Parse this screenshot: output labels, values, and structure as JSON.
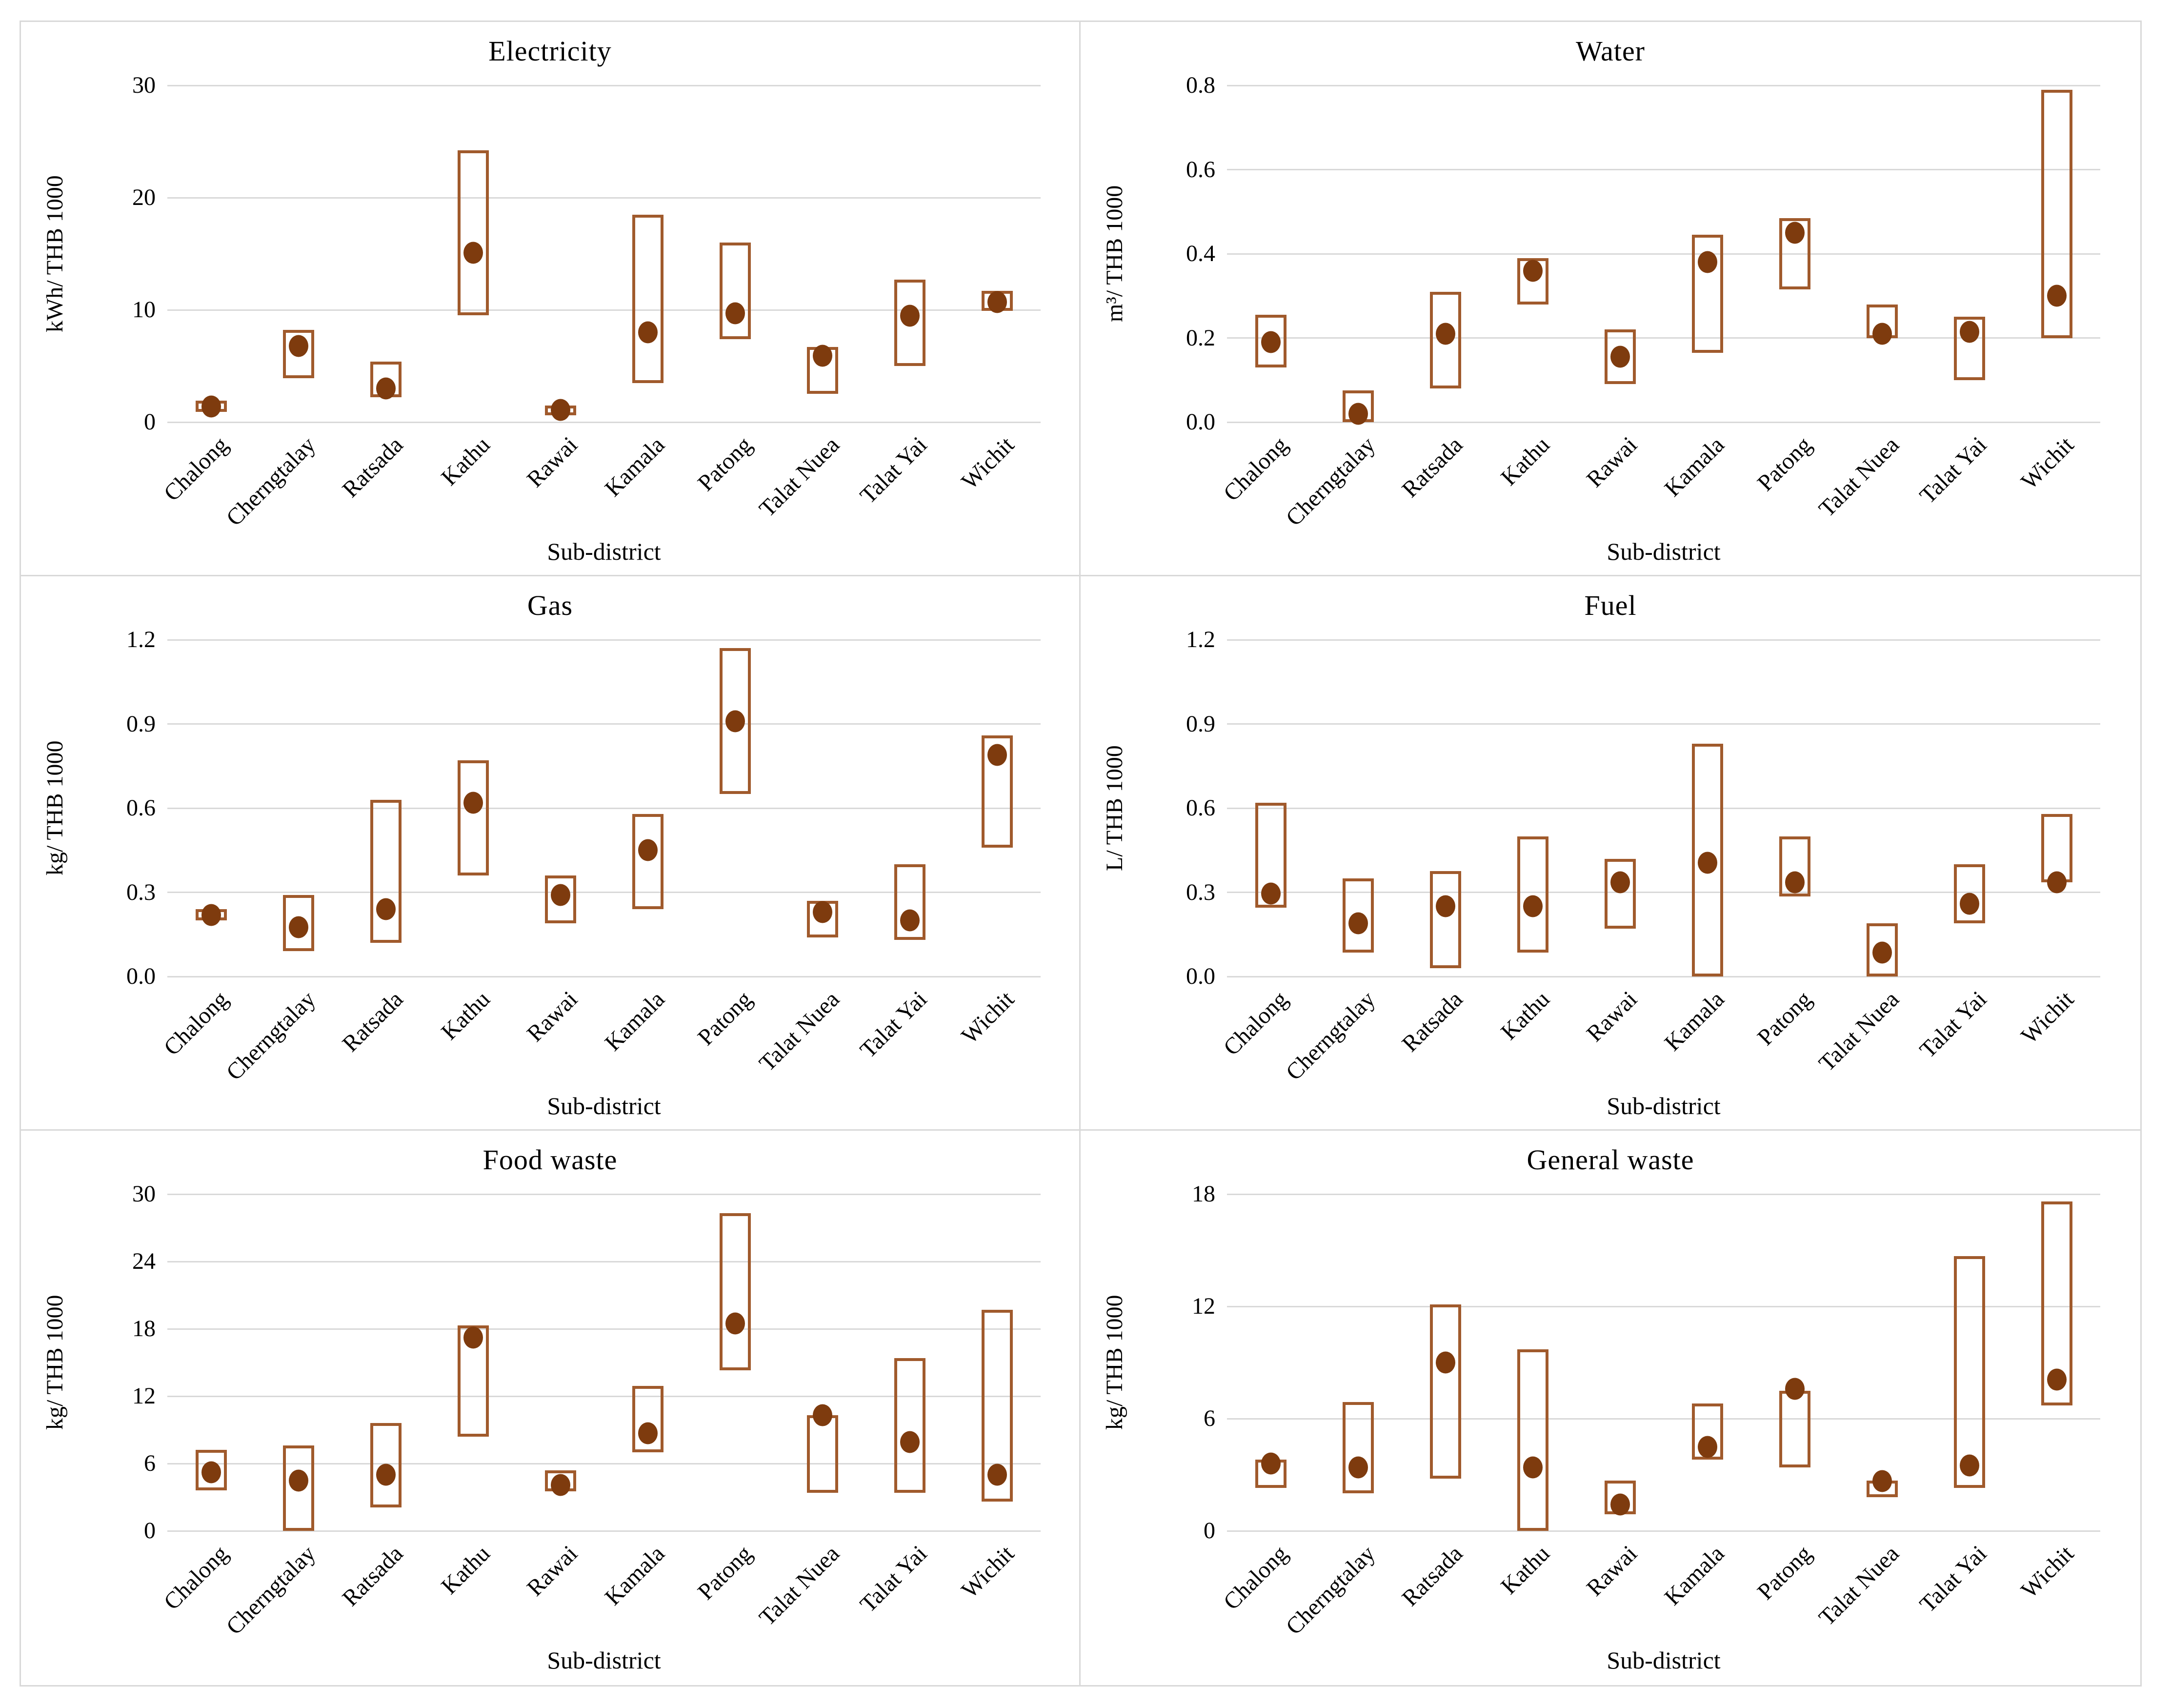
{
  "colors": {
    "box_border": "#A05A2C",
    "marker_fill": "#7E3B0E",
    "gridline": "#D9D9D9",
    "panel_border": "#D9D9D9"
  },
  "chart_data": [
    {
      "type": "bar",
      "subtype": "floating-range-box-with-mean-marker",
      "title": "Electricity",
      "ylabel": "kWh/ THB 1000",
      "xlabel": "Sub-district",
      "ylim": [
        0,
        30
      ],
      "yticks": [
        0,
        10,
        20,
        30
      ],
      "ytick_labels": [
        "0",
        "10",
        "20",
        "30"
      ],
      "grid": true,
      "categories": [
        "Chalong",
        "Cherngtalay",
        "Ratsada",
        "Kathu",
        "Rawai",
        "Kamala",
        "Patong",
        "Talat Nuea",
        "Talat Yai",
        "Wichit"
      ],
      "series": [
        {
          "name": "range_low",
          "values": [
            0.9,
            3.9,
            2.2,
            9.5,
            0.6,
            3.5,
            7.4,
            2.5,
            5.0,
            9.9
          ]
        },
        {
          "name": "range_high",
          "values": [
            1.9,
            8.2,
            5.4,
            24.2,
            1.5,
            18.5,
            16.0,
            6.7,
            12.7,
            11.7
          ]
        },
        {
          "name": "mean",
          "values": [
            1.4,
            6.8,
            3.0,
            15.1,
            1.1,
            8.0,
            9.7,
            5.9,
            9.5,
            10.7
          ]
        }
      ]
    },
    {
      "type": "bar",
      "subtype": "floating-range-box-with-mean-marker",
      "title": "Water",
      "ylabel": "m³/ THB 1000",
      "xlabel": "Sub-district",
      "ylim": [
        0,
        0.8
      ],
      "yticks": [
        0,
        0.2,
        0.4,
        0.6,
        0.8
      ],
      "ytick_labels": [
        "0.0",
        "0.2",
        "0.4",
        "0.6",
        "0.8"
      ],
      "grid": true,
      "categories": [
        "Chalong",
        "Cherngtalay",
        "Ratsada",
        "Kathu",
        "Rawai",
        "Kamala",
        "Patong",
        "Talat Nuea",
        "Talat Yai",
        "Wichit"
      ],
      "series": [
        {
          "name": "range_low",
          "values": [
            0.13,
            0.0,
            0.08,
            0.28,
            0.09,
            0.165,
            0.315,
            0.2,
            0.1,
            0.2
          ]
        },
        {
          "name": "range_high",
          "values": [
            0.255,
            0.075,
            0.31,
            0.39,
            0.22,
            0.445,
            0.485,
            0.28,
            0.25,
            0.79
          ]
        },
        {
          "name": "mean",
          "values": [
            0.19,
            0.02,
            0.21,
            0.36,
            0.155,
            0.38,
            0.45,
            0.21,
            0.215,
            0.3
          ]
        }
      ]
    },
    {
      "type": "bar",
      "subtype": "floating-range-box-with-mean-marker",
      "title": "Gas",
      "ylabel": "kg/ THB 1000",
      "xlabel": "Sub-district",
      "ylim": [
        0,
        1.2
      ],
      "yticks": [
        0,
        0.3,
        0.6,
        0.9,
        1.2
      ],
      "ytick_labels": [
        "0.0",
        "0.3",
        "0.6",
        "0.9",
        "1.2"
      ],
      "grid": true,
      "categories": [
        "Chalong",
        "Cherngtalay",
        "Ratsada",
        "Kathu",
        "Rawai",
        "Kamala",
        "Patong",
        "Talat Nuea",
        "Talat Yai",
        "Wichit"
      ],
      "series": [
        {
          "name": "range_low",
          "values": [
            0.2,
            0.09,
            0.12,
            0.36,
            0.19,
            0.24,
            0.65,
            0.14,
            0.13,
            0.46
          ]
        },
        {
          "name": "range_high",
          "values": [
            0.24,
            0.29,
            0.63,
            0.77,
            0.36,
            0.58,
            1.17,
            0.27,
            0.4,
            0.86
          ]
        },
        {
          "name": "mean",
          "values": [
            0.22,
            0.175,
            0.24,
            0.62,
            0.29,
            0.45,
            0.91,
            0.23,
            0.2,
            0.79
          ]
        }
      ]
    },
    {
      "type": "bar",
      "subtype": "floating-range-box-with-mean-marker",
      "title": "Fuel",
      "ylabel": "L/ THB 1000",
      "xlabel": "Sub-district",
      "ylim": [
        0,
        1.2
      ],
      "yticks": [
        0,
        0.3,
        0.6,
        0.9,
        1.2
      ],
      "ytick_labels": [
        "0.0",
        "0.3",
        "0.6",
        "0.9",
        "1.2"
      ],
      "grid": true,
      "categories": [
        "Chalong",
        "Cherngtalay",
        "Ratsada",
        "Kathu",
        "Rawai",
        "Kamala",
        "Patong",
        "Talat Nuea",
        "Talat Yai",
        "Wichit"
      ],
      "series": [
        {
          "name": "range_low",
          "values": [
            0.245,
            0.085,
            0.03,
            0.085,
            0.17,
            0.0,
            0.285,
            0.0,
            0.19,
            0.335
          ]
        },
        {
          "name": "range_high",
          "values": [
            0.62,
            0.35,
            0.375,
            0.5,
            0.42,
            0.83,
            0.5,
            0.19,
            0.4,
            0.58
          ]
        },
        {
          "name": "mean",
          "values": [
            0.295,
            0.19,
            0.25,
            0.25,
            0.335,
            0.405,
            0.335,
            0.085,
            0.26,
            0.335
          ]
        }
      ]
    },
    {
      "type": "bar",
      "subtype": "floating-range-box-with-mean-marker",
      "title": "Food waste",
      "ylabel": "kg/ THB 1000",
      "xlabel": "Sub-district",
      "ylim": [
        0,
        30
      ],
      "yticks": [
        0,
        6,
        12,
        18,
        24,
        30
      ],
      "ytick_labels": [
        "0",
        "6",
        "12",
        "18",
        "24",
        "30"
      ],
      "grid": true,
      "categories": [
        "Chalong",
        "Cherngtalay",
        "Ratsada",
        "Kathu",
        "Rawai",
        "Kamala",
        "Patong",
        "Talat Nuea",
        "Talat Yai",
        "Wichit"
      ],
      "series": [
        {
          "name": "range_low",
          "values": [
            3.6,
            0.0,
            2.1,
            8.4,
            3.5,
            7.0,
            14.3,
            3.4,
            3.4,
            2.6
          ]
        },
        {
          "name": "range_high",
          "values": [
            7.2,
            7.6,
            9.6,
            18.3,
            5.4,
            12.9,
            28.3,
            10.3,
            15.4,
            19.7
          ]
        },
        {
          "name": "mean",
          "values": [
            5.2,
            4.5,
            5.0,
            17.2,
            4.1,
            8.7,
            18.5,
            10.3,
            7.9,
            5.0
          ]
        }
      ]
    },
    {
      "type": "bar",
      "subtype": "floating-range-box-with-mean-marker",
      "title": "General waste",
      "ylabel": "kg/ THB 1000",
      "xlabel": "Sub-district",
      "ylim": [
        0,
        18
      ],
      "yticks": [
        0,
        6,
        12,
        18
      ],
      "ytick_labels": [
        "0",
        "6",
        "12",
        "18"
      ],
      "grid": true,
      "categories": [
        "Chalong",
        "Cherngtalay",
        "Ratsada",
        "Kathu",
        "Rawai",
        "Kamala",
        "Patong",
        "Talat Nuea",
        "Talat Yai",
        "Wichit"
      ],
      "series": [
        {
          "name": "range_low",
          "values": [
            2.3,
            2.0,
            2.8,
            0.0,
            0.9,
            3.8,
            3.4,
            1.8,
            2.3,
            6.7
          ]
        },
        {
          "name": "range_high",
          "values": [
            3.8,
            6.9,
            12.1,
            9.7,
            2.7,
            6.8,
            7.5,
            2.7,
            14.7,
            17.6
          ]
        },
        {
          "name": "mean",
          "values": [
            3.6,
            3.4,
            9.0,
            3.4,
            1.4,
            4.5,
            7.6,
            2.65,
            3.5,
            8.1
          ]
        }
      ]
    }
  ]
}
